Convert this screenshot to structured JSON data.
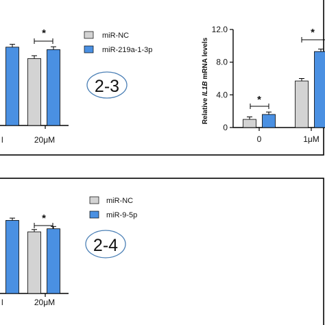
{
  "colors": {
    "nc": "#d3d3d3",
    "mir": "#4a90e2",
    "frame": "#000000",
    "circle": "#4a7fb5"
  },
  "panel_upper": {
    "left_chart": {
      "x_tick_partial": "l",
      "x_tick_20": "20μM",
      "legend_nc": "miR-NC",
      "legend_mir": "miR-219a-1-3p",
      "sig": "*"
    },
    "circle_label": "2-3",
    "right_chart": {
      "ylabel_prefix": "Relative ",
      "ylabel_gene": "IL1B",
      "ylabel_suffix": " mRNA levels",
      "yticks": [
        "0",
        "4.0",
        "8.0",
        "12.0"
      ],
      "xticks": [
        "0",
        "1μM"
      ],
      "sig_1": "*",
      "sig_2": "*"
    }
  },
  "panel_lower": {
    "left_chart": {
      "x_tick_partial": "l",
      "x_tick_20": "20μM",
      "legend_nc": "miR-NC",
      "legend_mir": "miR-9-5p",
      "sig": "*"
    },
    "circle_label": "2-4"
  },
  "chart_data": [
    {
      "type": "bar",
      "title": "",
      "categories": [
        "",
        "20μM"
      ],
      "series": [
        {
          "name": "miR-NC",
          "values": [
            null,
            8.2
          ]
        },
        {
          "name": "miR-219a-1-3p",
          "values": [
            9.6,
            9.3
          ]
        }
      ],
      "significance": [
        "",
        "*"
      ]
    },
    {
      "type": "bar",
      "title": "",
      "ylabel": "Relative IL1B mRNA levels",
      "ylim": [
        0,
        12
      ],
      "yticks": [
        0,
        4,
        8,
        12
      ],
      "categories": [
        "0",
        "1μM"
      ],
      "series": [
        {
          "name": "miR-NC",
          "values": [
            1.0,
            5.7
          ]
        },
        {
          "name": "miR-219a-1-3p",
          "values": [
            1.6,
            9.3
          ]
        }
      ],
      "significance": [
        "*",
        "*"
      ]
    },
    {
      "type": "bar",
      "title": "",
      "categories": [
        "",
        "20μM"
      ],
      "series": [
        {
          "name": "miR-NC",
          "values": [
            null,
            8.1
          ]
        },
        {
          "name": "miR-9-5p",
          "values": [
            9.6,
            8.5
          ]
        }
      ],
      "significance": [
        "",
        "*"
      ]
    }
  ]
}
